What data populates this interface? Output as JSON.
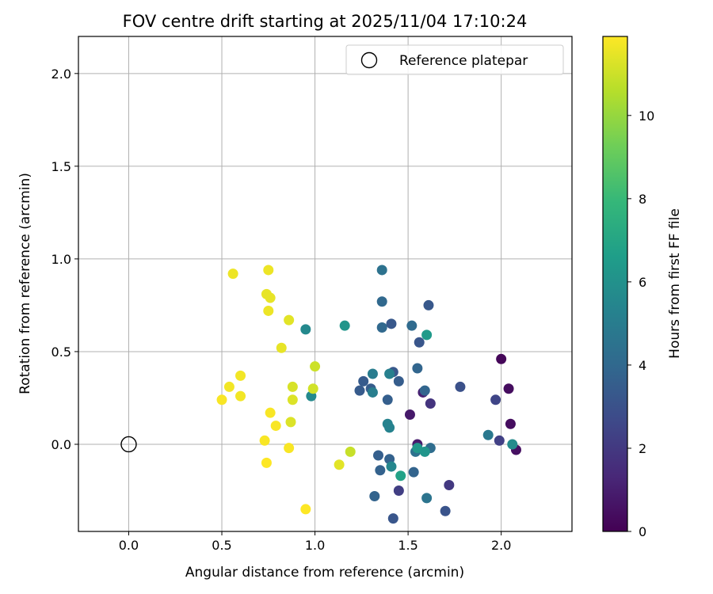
{
  "chart_data": {
    "type": "scatter",
    "title": "FOV centre drift starting at 2025/11/04 17:10:24",
    "xlabel": "Angular distance from reference (arcmin)",
    "ylabel": "Rotation from reference (arcmin)",
    "xlim": [
      -0.27,
      2.38
    ],
    "ylim": [
      -0.47,
      2.2
    ],
    "xticks": [
      0.0,
      0.5,
      1.0,
      1.5,
      2.0
    ],
    "xtick_labels": [
      "0.0",
      "0.5",
      "1.0",
      "1.5",
      "2.0"
    ],
    "yticks": [
      0.0,
      0.5,
      1.0,
      1.5,
      2.0
    ],
    "ytick_labels": [
      "0.0",
      "0.5",
      "1.0",
      "1.5",
      "2.0"
    ],
    "grid": true,
    "legend": {
      "position": "top-right",
      "entries": [
        "Reference platepar"
      ]
    },
    "reference_point": {
      "x": 0.0,
      "y": 0.0,
      "label": "Reference platepar"
    },
    "colorbar": {
      "label": "Hours from first FF file",
      "min": 0,
      "max": 11.9,
      "ticks": [
        0,
        2,
        4,
        6,
        8,
        10
      ],
      "tick_labels": [
        "0",
        "2",
        "4",
        "6",
        "8",
        "10"
      ],
      "colormap": [
        "#440154",
        "#482878",
        "#3e4989",
        "#31688e",
        "#26828e",
        "#1f9e89",
        "#35b779",
        "#6ece58",
        "#b5de2b",
        "#fde725"
      ]
    },
    "points": [
      {
        "x": 2.0,
        "y": 0.46,
        "c": 0.2
      },
      {
        "x": 2.04,
        "y": 0.3,
        "c": 0.4
      },
      {
        "x": 2.05,
        "y": 0.11,
        "c": 0.4
      },
      {
        "x": 2.08,
        "y": -0.03,
        "c": 0.5
      },
      {
        "x": 1.51,
        "y": 0.16,
        "c": 0.8
      },
      {
        "x": 1.55,
        "y": 0.0,
        "c": 0.9
      },
      {
        "x": 1.58,
        "y": 0.28,
        "c": 1.1
      },
      {
        "x": 1.62,
        "y": 0.22,
        "c": 1.8
      },
      {
        "x": 1.72,
        "y": -0.22,
        "c": 2.0
      },
      {
        "x": 1.45,
        "y": -0.25,
        "c": 2.2
      },
      {
        "x": 1.99,
        "y": 0.02,
        "c": 2.3
      },
      {
        "x": 1.97,
        "y": 0.24,
        "c": 2.5
      },
      {
        "x": 1.78,
        "y": 0.31,
        "c": 3.0
      },
      {
        "x": 1.7,
        "y": -0.36,
        "c": 3.1
      },
      {
        "x": 1.42,
        "y": -0.4,
        "c": 3.2
      },
      {
        "x": 1.56,
        "y": 0.55,
        "c": 3.2
      },
      {
        "x": 1.41,
        "y": 0.65,
        "c": 3.3
      },
      {
        "x": 1.61,
        "y": 0.75,
        "c": 3.3
      },
      {
        "x": 1.42,
        "y": 0.39,
        "c": 3.3
      },
      {
        "x": 1.26,
        "y": 0.34,
        "c": 3.4
      },
      {
        "x": 1.24,
        "y": 0.29,
        "c": 3.4
      },
      {
        "x": 1.3,
        "y": 0.3,
        "c": 3.5
      },
      {
        "x": 1.45,
        "y": 0.34,
        "c": 3.5
      },
      {
        "x": 1.39,
        "y": 0.24,
        "c": 3.6
      },
      {
        "x": 1.34,
        "y": -0.06,
        "c": 3.6
      },
      {
        "x": 1.35,
        "y": -0.14,
        "c": 3.7
      },
      {
        "x": 1.4,
        "y": -0.08,
        "c": 3.7
      },
      {
        "x": 1.32,
        "y": -0.28,
        "c": 3.8
      },
      {
        "x": 1.53,
        "y": -0.15,
        "c": 3.8
      },
      {
        "x": 1.55,
        "y": 0.41,
        "c": 3.9
      },
      {
        "x": 1.59,
        "y": 0.29,
        "c": 3.9
      },
      {
        "x": 1.36,
        "y": 0.77,
        "c": 4.0
      },
      {
        "x": 1.36,
        "y": 0.63,
        "c": 4.0
      },
      {
        "x": 1.52,
        "y": 0.64,
        "c": 4.1
      },
      {
        "x": 1.62,
        "y": -0.02,
        "c": 4.2
      },
      {
        "x": 1.54,
        "y": -0.04,
        "c": 4.4
      },
      {
        "x": 1.36,
        "y": 0.94,
        "c": 4.5
      },
      {
        "x": 1.6,
        "y": -0.29,
        "c": 4.6
      },
      {
        "x": 1.93,
        "y": 0.05,
        "c": 4.8
      },
      {
        "x": 1.31,
        "y": 0.38,
        "c": 5.0
      },
      {
        "x": 1.31,
        "y": 0.28,
        "c": 5.1
      },
      {
        "x": 1.4,
        "y": 0.38,
        "c": 5.2
      },
      {
        "x": 1.39,
        "y": 0.11,
        "c": 5.3
      },
      {
        "x": 1.4,
        "y": 0.09,
        "c": 5.3
      },
      {
        "x": 1.41,
        "y": -0.12,
        "c": 5.5
      },
      {
        "x": 0.95,
        "y": 0.62,
        "c": 5.6
      },
      {
        "x": 0.98,
        "y": 0.26,
        "c": 5.6
      },
      {
        "x": 2.06,
        "y": 0.0,
        "c": 5.7
      },
      {
        "x": 1.16,
        "y": 0.64,
        "c": 6.2
      },
      {
        "x": 1.59,
        "y": -0.04,
        "c": 6.2
      },
      {
        "x": 1.55,
        "y": -0.02,
        "c": 6.3
      },
      {
        "x": 1.6,
        "y": 0.59,
        "c": 6.4
      },
      {
        "x": 1.46,
        "y": -0.17,
        "c": 6.8
      },
      {
        "x": 1.19,
        "y": -0.04,
        "c": 10.9
      },
      {
        "x": 1.0,
        "y": 0.42,
        "c": 11.0
      },
      {
        "x": 0.99,
        "y": 0.3,
        "c": 11.1
      },
      {
        "x": 0.88,
        "y": 0.31,
        "c": 11.2
      },
      {
        "x": 0.87,
        "y": 0.12,
        "c": 11.3
      },
      {
        "x": 0.88,
        "y": 0.24,
        "c": 11.3
      },
      {
        "x": 1.13,
        "y": -0.11,
        "c": 11.4
      },
      {
        "x": 0.86,
        "y": 0.67,
        "c": 11.4
      },
      {
        "x": 0.82,
        "y": 0.52,
        "c": 11.5
      },
      {
        "x": 0.74,
        "y": 0.81,
        "c": 11.5
      },
      {
        "x": 0.76,
        "y": 0.79,
        "c": 11.5
      },
      {
        "x": 0.75,
        "y": 0.72,
        "c": 11.6
      },
      {
        "x": 0.75,
        "y": 0.94,
        "c": 11.6
      },
      {
        "x": 0.56,
        "y": 0.92,
        "c": 11.6
      },
      {
        "x": 0.6,
        "y": 0.37,
        "c": 11.7
      },
      {
        "x": 0.54,
        "y": 0.31,
        "c": 11.7
      },
      {
        "x": 0.6,
        "y": 0.26,
        "c": 11.7
      },
      {
        "x": 0.5,
        "y": 0.24,
        "c": 11.8
      },
      {
        "x": 0.76,
        "y": 0.17,
        "c": 11.8
      },
      {
        "x": 0.79,
        "y": 0.1,
        "c": 11.8
      },
      {
        "x": 0.73,
        "y": 0.02,
        "c": 11.8
      },
      {
        "x": 0.86,
        "y": -0.02,
        "c": 11.8
      },
      {
        "x": 0.74,
        "y": -0.1,
        "c": 11.9
      },
      {
        "x": 0.95,
        "y": -0.35,
        "c": 11.9
      }
    ]
  }
}
